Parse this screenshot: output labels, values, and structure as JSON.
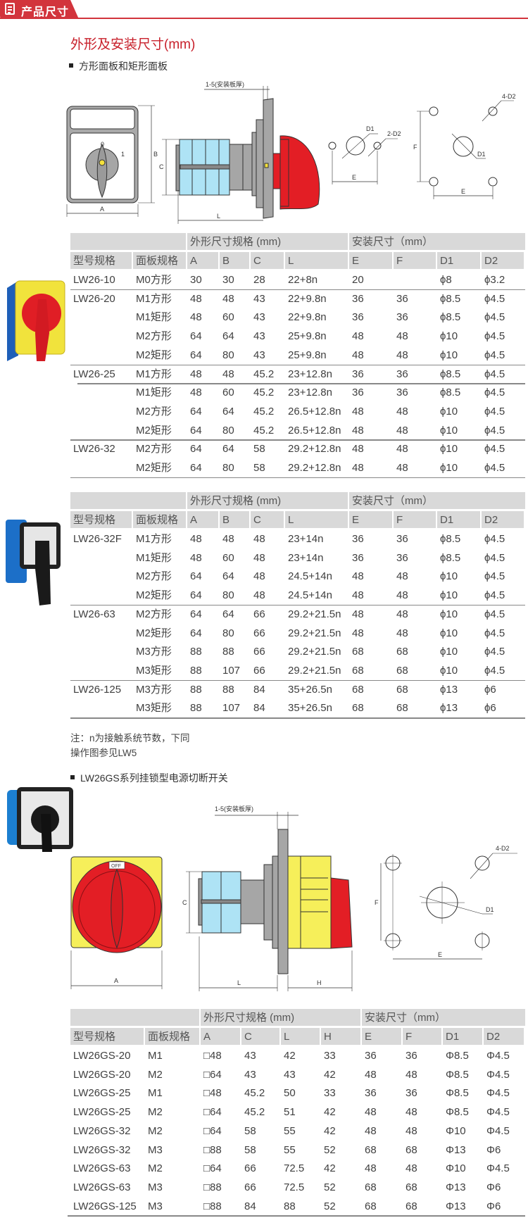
{
  "header": {
    "tab_label": "产品尺寸",
    "tab_icon": "document-icon",
    "accent": "#d2343c"
  },
  "section_title": "外形及安装尺寸(mm)",
  "section1": {
    "subtitle": "方形面板和矩形面板",
    "diagram": {
      "thickness_label": "1-5(安装板厚)",
      "labels": {
        "A": "A",
        "B": "B",
        "C": "C",
        "L": "L",
        "E": "E",
        "F": "F",
        "D1": "D1",
        "D2_2": "2-D2",
        "D2_4": "4-D2",
        "pos0": "0",
        "pos1": "1"
      }
    }
  },
  "table1": {
    "group_headers": [
      "外形尺寸规格 (mm)",
      "安装尺寸（mm）"
    ],
    "columns": [
      "型号规格",
      "面板规格",
      "A",
      "B",
      "C",
      "L",
      "E",
      "F",
      "D1",
      "D2"
    ],
    "rows": [
      [
        "LW26-10",
        "M0方形",
        "30",
        "30",
        "28",
        "22+8n",
        "20",
        "",
        "ϕ8",
        "ϕ3.2"
      ],
      [
        "LW26-20",
        "M1方形",
        "48",
        "48",
        "43",
        "22+9.8n",
        "36",
        "36",
        "ϕ8.5",
        "ϕ4.5"
      ],
      [
        "",
        "M1矩形",
        "48",
        "60",
        "43",
        "22+9.8n",
        "36",
        "36",
        "ϕ8.5",
        "ϕ4.5"
      ],
      [
        "",
        "M2方形",
        "64",
        "64",
        "43",
        "25+9.8n",
        "48",
        "48",
        "ϕ10",
        "ϕ4.5"
      ],
      [
        "",
        "M2矩形",
        "64",
        "80",
        "43",
        "25+9.8n",
        "48",
        "48",
        "ϕ10",
        "ϕ4.5"
      ],
      [
        "LW26-25",
        "M1方形",
        "48",
        "48",
        "45.2",
        "23+12.8n",
        "36",
        "36",
        "ϕ8.5",
        "ϕ4.5"
      ],
      [
        "",
        "M1矩形",
        "48",
        "60",
        "45.2",
        "23+12.8n",
        "36",
        "36",
        "ϕ8.5",
        "ϕ4.5"
      ],
      [
        "",
        "M2方形",
        "64",
        "64",
        "45.2",
        "26.5+12.8n",
        "48",
        "48",
        "ϕ10",
        "ϕ4.5"
      ],
      [
        "",
        "M2矩形",
        "64",
        "80",
        "45.2",
        "26.5+12.8n",
        "48",
        "48",
        "ϕ10",
        "ϕ4.5"
      ],
      [
        "LW26-32",
        "M2方形",
        "64",
        "64",
        "58",
        "29.2+12.8n",
        "48",
        "48",
        "ϕ10",
        "ϕ4.5"
      ],
      [
        "",
        "M2矩形",
        "64",
        "80",
        "58",
        "29.2+12.8n",
        "48",
        "48",
        "ϕ10",
        "ϕ4.5"
      ]
    ]
  },
  "table2": {
    "group_headers": [
      "外形尺寸规格 (mm)",
      "安装尺寸（mm）"
    ],
    "columns": [
      "型号规格",
      "面板规格",
      "A",
      "B",
      "C",
      "L",
      "E",
      "F",
      "D1",
      "D2"
    ],
    "rows": [
      [
        "LW26-32F",
        "M1方形",
        "48",
        "48",
        "48",
        "23+14n",
        "36",
        "36",
        "ϕ8.5",
        "ϕ4.5"
      ],
      [
        "",
        "M1矩形",
        "48",
        "60",
        "48",
        "23+14n",
        "36",
        "36",
        "ϕ8.5",
        "ϕ4.5"
      ],
      [
        "",
        "M2方形",
        "64",
        "64",
        "48",
        "24.5+14n",
        "48",
        "48",
        "ϕ10",
        "ϕ4.5"
      ],
      [
        "",
        "M2矩形",
        "64",
        "80",
        "48",
        "24.5+14n",
        "48",
        "48",
        "ϕ10",
        "ϕ4.5"
      ],
      [
        "LW26-63",
        "M2方形",
        "64",
        "64",
        "66",
        "29.2+21.5n",
        "48",
        "48",
        "ϕ10",
        "ϕ4.5"
      ],
      [
        "",
        "M2矩形",
        "64",
        "80",
        "66",
        "29.2+21.5n",
        "48",
        "48",
        "ϕ10",
        "ϕ4.5"
      ],
      [
        "",
        "M3方形",
        "88",
        "88",
        "66",
        "29.2+21.5n",
        "68",
        "68",
        "ϕ10",
        "ϕ4.5"
      ],
      [
        "",
        "M3矩形",
        "88",
        "107",
        "66",
        "29.2+21.5n",
        "68",
        "68",
        "ϕ10",
        "ϕ4.5"
      ],
      [
        "LW26-125",
        "M3方形",
        "88",
        "88",
        "84",
        "35+26.5n",
        "68",
        "68",
        "ϕ13",
        "ϕ6"
      ],
      [
        "",
        "M3矩形",
        "88",
        "107",
        "84",
        "35+26.5n",
        "68",
        "68",
        "ϕ13",
        "ϕ6"
      ]
    ]
  },
  "notes": [
    "注：n为接触系统节数，下同",
    "操作图参见LW5"
  ],
  "section2": {
    "subtitle": "LW26GS系列挂锁型电源切断开关",
    "diagram": {
      "thickness_label": "1-5(安装板厚)",
      "off_label": "OFF",
      "labels": {
        "A": "A",
        "C": "C",
        "L": "L",
        "H": "H",
        "E": "E",
        "F": "F",
        "D1": "D1",
        "D2_4": "4-D2"
      }
    }
  },
  "table3": {
    "group_headers": [
      "外形尺寸规格 (mm)",
      "安装尺寸（mm）"
    ],
    "columns": [
      "型号规格",
      "面板规格",
      "A",
      "C",
      "L",
      "H",
      "E",
      "F",
      "D1",
      "D2"
    ],
    "rows": [
      [
        "LW26GS-20",
        "M1",
        "□48",
        "43",
        "42",
        "33",
        "36",
        "36",
        "Φ8.5",
        "Φ4.5"
      ],
      [
        "LW26GS-20",
        "M2",
        "□64",
        "43",
        "43",
        "42",
        "48",
        "48",
        "Φ8.5",
        "Φ4.5"
      ],
      [
        "LW26GS-25",
        "M1",
        "□48",
        "45.2",
        "50",
        "33",
        "36",
        "36",
        "Φ8.5",
        "Φ4.5"
      ],
      [
        "LW26GS-25",
        "M2",
        "□64",
        "45.2",
        "51",
        "42",
        "48",
        "48",
        "Φ8.5",
        "Φ4.5"
      ],
      [
        "LW26GS-32",
        "M2",
        "□64",
        "58",
        "55",
        "42",
        "48",
        "48",
        "Φ10",
        "Φ4.5"
      ],
      [
        "LW26GS-32",
        "M3",
        "□88",
        "58",
        "55",
        "52",
        "68",
        "68",
        "Φ13",
        "Φ6"
      ],
      [
        "LW26GS-63",
        "M2",
        "□64",
        "66",
        "72.5",
        "42",
        "48",
        "48",
        "Φ10",
        "Φ4.5"
      ],
      [
        "LW26GS-63",
        "M3",
        "□88",
        "66",
        "72.5",
        "52",
        "68",
        "68",
        "Φ13",
        "Φ6"
      ],
      [
        "LW26GS-125",
        "M3",
        "□88",
        "84",
        "88",
        "52",
        "68",
        "68",
        "Φ13",
        "Φ6"
      ]
    ]
  },
  "colors": {
    "title_red": "#c8202b",
    "header_gray": "#d9d9d9",
    "knob_red": "#e31e25",
    "panel_yellow": "#f6ef5a",
    "module_blue": "#aee3f5",
    "body_gray": "#a6a6a6"
  }
}
